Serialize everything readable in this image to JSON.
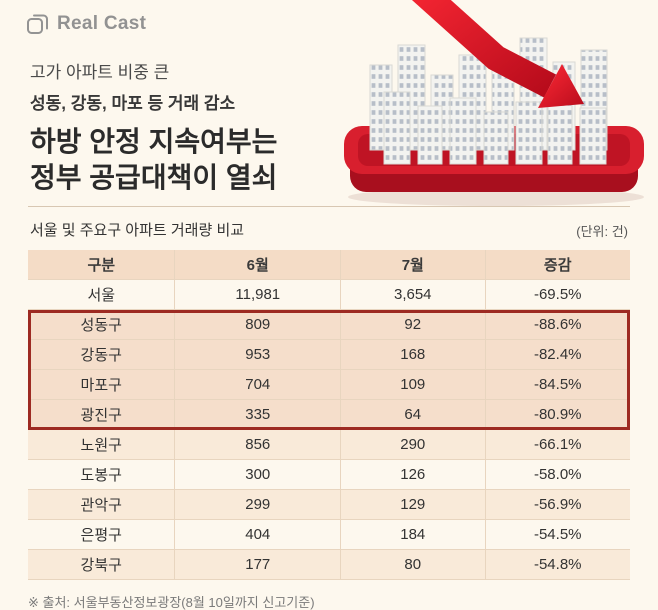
{
  "brand": {
    "name": "Real Cast"
  },
  "headline": {
    "sub1": "고가 아파트 비중 큰",
    "sub2": "성동, 강동, 마포 등 거래 감소",
    "main1": "하방 안정 지속여부는",
    "main2": "정부 공급대책이 열쇠"
  },
  "table": {
    "title": "서울 및 주요구 아파트 거래량 비교",
    "unit_label": "(단위: 건)",
    "headers": [
      "구분",
      "6월",
      "7월",
      "증감"
    ],
    "rows": [
      {
        "name": "서울",
        "jun": "11,981",
        "jul": "3,654",
        "change": "-69.5%",
        "highlight": false
      },
      {
        "name": "성동구",
        "jun": "809",
        "jul": "92",
        "change": "-88.6%",
        "highlight": true
      },
      {
        "name": "강동구",
        "jun": "953",
        "jul": "168",
        "change": "-82.4%",
        "highlight": true
      },
      {
        "name": "마포구",
        "jun": "704",
        "jul": "109",
        "change": "-84.5%",
        "highlight": true
      },
      {
        "name": "광진구",
        "jun": "335",
        "jul": "64",
        "change": "-80.9%",
        "highlight": true
      },
      {
        "name": "노원구",
        "jun": "856",
        "jul": "290",
        "change": "-66.1%",
        "highlight": false
      },
      {
        "name": "도봉구",
        "jun": "300",
        "jul": "126",
        "change": "-58.0%",
        "highlight": false
      },
      {
        "name": "관악구",
        "jun": "299",
        "jul": "129",
        "change": "-56.9%",
        "highlight": false
      },
      {
        "name": "은평구",
        "jun": "404",
        "jul": "184",
        "change": "-54.5%",
        "highlight": false
      },
      {
        "name": "강북구",
        "jun": "177",
        "jul": "80",
        "change": "-54.8%",
        "highlight": false
      }
    ],
    "source": "※ 출처: 서울부동산정보광장(8월 10일까지 신고기준)"
  },
  "colors": {
    "background": "#fdf8ee",
    "header_row": "#f4dcc6",
    "alt_row": "#f9ead9",
    "highlight_row": "#f5decb",
    "highlight_border": "#9d2a22",
    "arrow_red": "#d81f2e",
    "text_dark": "#333333"
  },
  "chart_data": {
    "type": "table",
    "title": "서울 및 주요구 아파트 거래량 비교",
    "unit": "건",
    "columns": [
      "구분",
      "6월",
      "7월",
      "증감"
    ],
    "rows": [
      [
        "서울",
        11981,
        3654,
        "-69.5%"
      ],
      [
        "성동구",
        809,
        92,
        "-88.6%"
      ],
      [
        "강동구",
        953,
        168,
        "-82.4%"
      ],
      [
        "마포구",
        704,
        109,
        "-84.5%"
      ],
      [
        "광진구",
        335,
        64,
        "-80.9%"
      ],
      [
        "노원구",
        856,
        290,
        "-66.1%"
      ],
      [
        "도봉구",
        300,
        126,
        "-58.0%"
      ],
      [
        "관악구",
        299,
        129,
        "-56.9%"
      ],
      [
        "은평구",
        404,
        184,
        "-54.5%"
      ],
      [
        "강북구",
        177,
        80,
        "-54.8%"
      ]
    ],
    "highlighted_rows": [
      "성동구",
      "강동구",
      "마포구",
      "광진구"
    ],
    "source": "서울부동산정보광장(8월 10일까지 신고기준)"
  }
}
